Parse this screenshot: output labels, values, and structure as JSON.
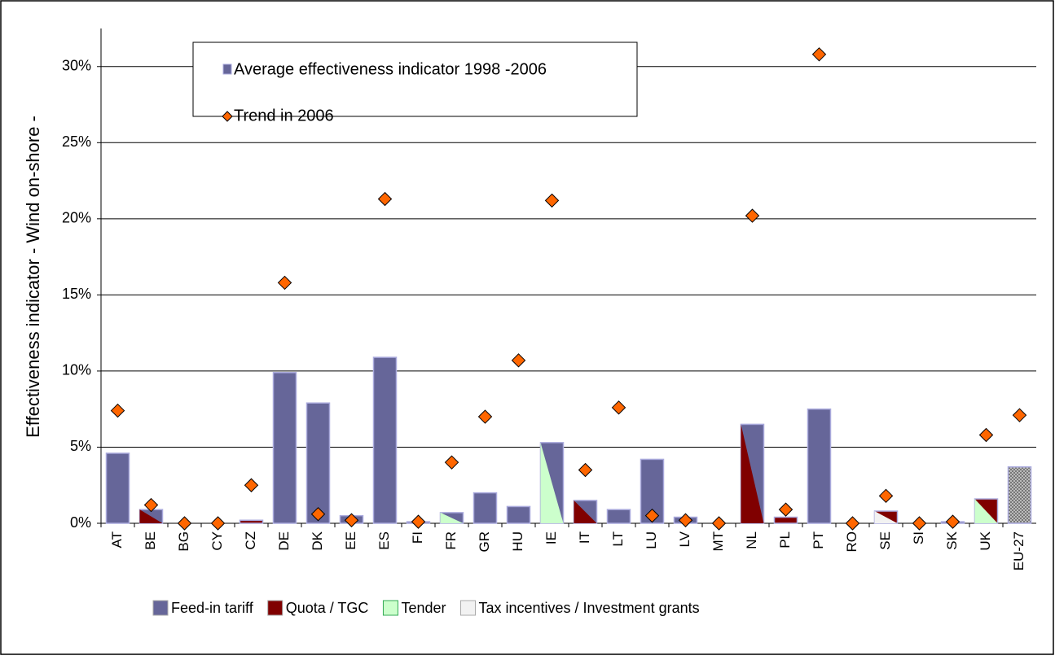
{
  "chart_data": {
    "type": "bar_scatter",
    "y_label": "Effectiveness indicator - Wind on-shore -",
    "categories": [
      "AT",
      "BE",
      "BG",
      "CY",
      "CZ",
      "DE",
      "DK",
      "EE",
      "ES",
      "FI",
      "FR",
      "GR",
      "HU",
      "IE",
      "IT",
      "LT",
      "LU",
      "LV",
      "MT",
      "NL",
      "PL",
      "PT",
      "RO",
      "SE",
      "SI",
      "SK",
      "UK",
      "EU-27"
    ],
    "series": [
      {
        "name": "Average effectiveness indicator 1998 -2006",
        "color": "#666699",
        "marker": "bar",
        "values": [
          4.6,
          0.9,
          0,
          0,
          0.2,
          9.9,
          7.9,
          0.5,
          10.9,
          0.1,
          0.7,
          2.0,
          1.1,
          5.3,
          1.5,
          0.9,
          4.2,
          0.4,
          0,
          6.5,
          0.4,
          7.5,
          0,
          0.8,
          0,
          0.1,
          1.6,
          3.7
        ]
      },
      {
        "name": "Trend in 2006",
        "color": "#ff6600",
        "marker": "diamond",
        "values": [
          7.4,
          1.2,
          0,
          0,
          2.5,
          15.8,
          0.6,
          0.2,
          21.3,
          0.1,
          4.0,
          7.0,
          10.7,
          21.2,
          3.5,
          7.6,
          0.5,
          0.2,
          0,
          20.2,
          0.9,
          30.8,
          0,
          1.8,
          0,
          0.1,
          5.8,
          7.1
        ]
      }
    ],
    "policy_legend": [
      {
        "name": "Feed-in tariff",
        "color": "#666699"
      },
      {
        "name": "Quota / TGC",
        "color": "#800000"
      },
      {
        "name": "Tender",
        "color": "#ccffcc"
      },
      {
        "name": "Tax incentives / Investment grants",
        "color": "#f2f2f2"
      }
    ],
    "policy": [
      [
        0
      ],
      [
        1,
        0
      ],
      [
        0
      ],
      [
        0
      ],
      [
        1
      ],
      [
        0
      ],
      [
        0
      ],
      [
        0
      ],
      [
        0
      ],
      [
        0
      ],
      [
        2,
        0
      ],
      [
        0
      ],
      [
        0
      ],
      [
        2,
        0
      ],
      [
        1,
        0
      ],
      [
        0
      ],
      [
        0
      ],
      [
        0
      ],
      [
        0
      ],
      [
        1,
        0
      ],
      [
        1
      ],
      [
        0
      ],
      [
        1
      ],
      [
        3,
        1
      ],
      [
        0
      ],
      [
        0
      ],
      [
        2,
        1
      ],
      []
    ],
    "ylim": [
      0,
      32.5
    ],
    "yticks": [
      {
        "value": 0,
        "label": "0%"
      },
      {
        "value": 5,
        "label": "5%"
      },
      {
        "value": 10,
        "label": "10%"
      },
      {
        "value": 15,
        "label": "15%"
      },
      {
        "value": 20,
        "label": "20%"
      },
      {
        "value": 25,
        "label": "25%"
      },
      {
        "value": 30,
        "label": "30%"
      }
    ],
    "grid": true
  }
}
